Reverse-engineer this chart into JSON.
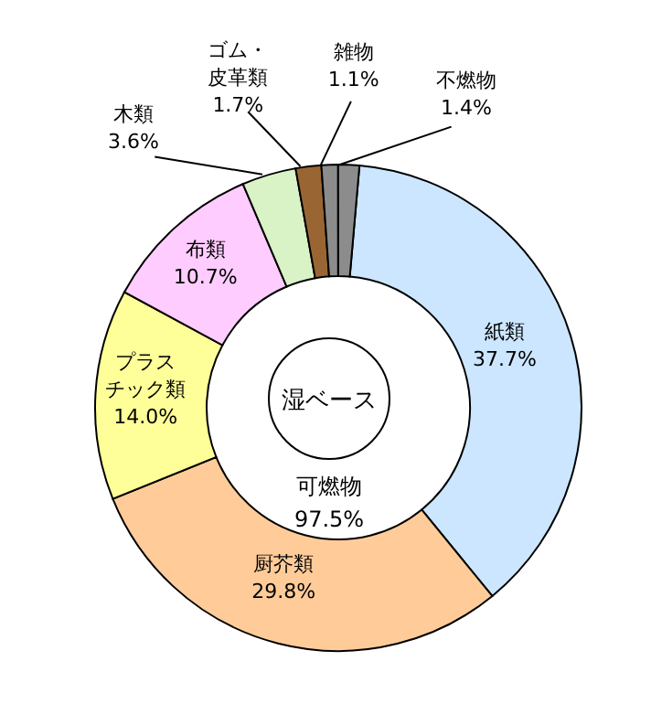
{
  "chart_data": {
    "type": "donut",
    "categories": [
      "紙類",
      "厨芥類",
      "プラスチック類",
      "布類",
      "木類",
      "ゴム・皮革類",
      "雑物",
      "不燃物"
    ],
    "values": [
      37.7,
      29.8,
      14.0,
      10.7,
      3.6,
      1.7,
      1.1,
      1.4
    ],
    "colors": [
      "#cce6ff",
      "#ffcc99",
      "#ffff99",
      "#ffccff",
      "#d9f2c6",
      "#996633",
      "#8c8c8c",
      "#8c8c8c"
    ],
    "value_labels": [
      "37.7%",
      "29.8%",
      "14.0%",
      "10.7%",
      "3.6%",
      "1.7%",
      "1.1%",
      "1.4%"
    ],
    "annotations": [
      "湿ベース",
      "可燃物\n97.5%"
    ]
  }
}
